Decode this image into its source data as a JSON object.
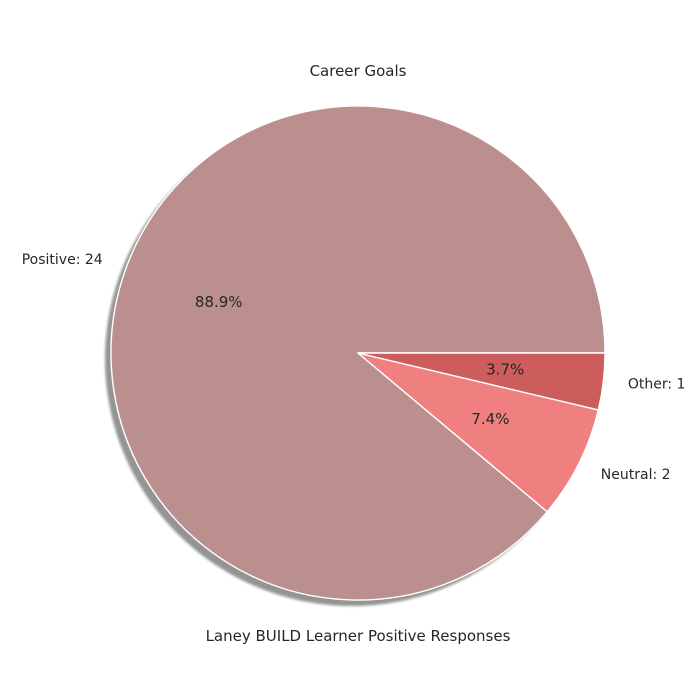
{
  "chart_data": {
    "type": "pie",
    "title": "Career Goals",
    "xlabel": "Laney BUILD Learner Positive Responses",
    "shadow": true,
    "start_angle": 0,
    "direction": "counterclockwise",
    "slices": [
      {
        "label": "Positive: 24",
        "value": 24,
        "pct_label": "88.9%",
        "color": "#bc8f8f"
      },
      {
        "label": "Neutral: 2",
        "value": 2,
        "pct_label": "7.4%",
        "color": "#f08080"
      },
      {
        "label": "Other: 1",
        "value": 1,
        "pct_label": "3.7%",
        "color": "#cd5c5c"
      }
    ]
  }
}
